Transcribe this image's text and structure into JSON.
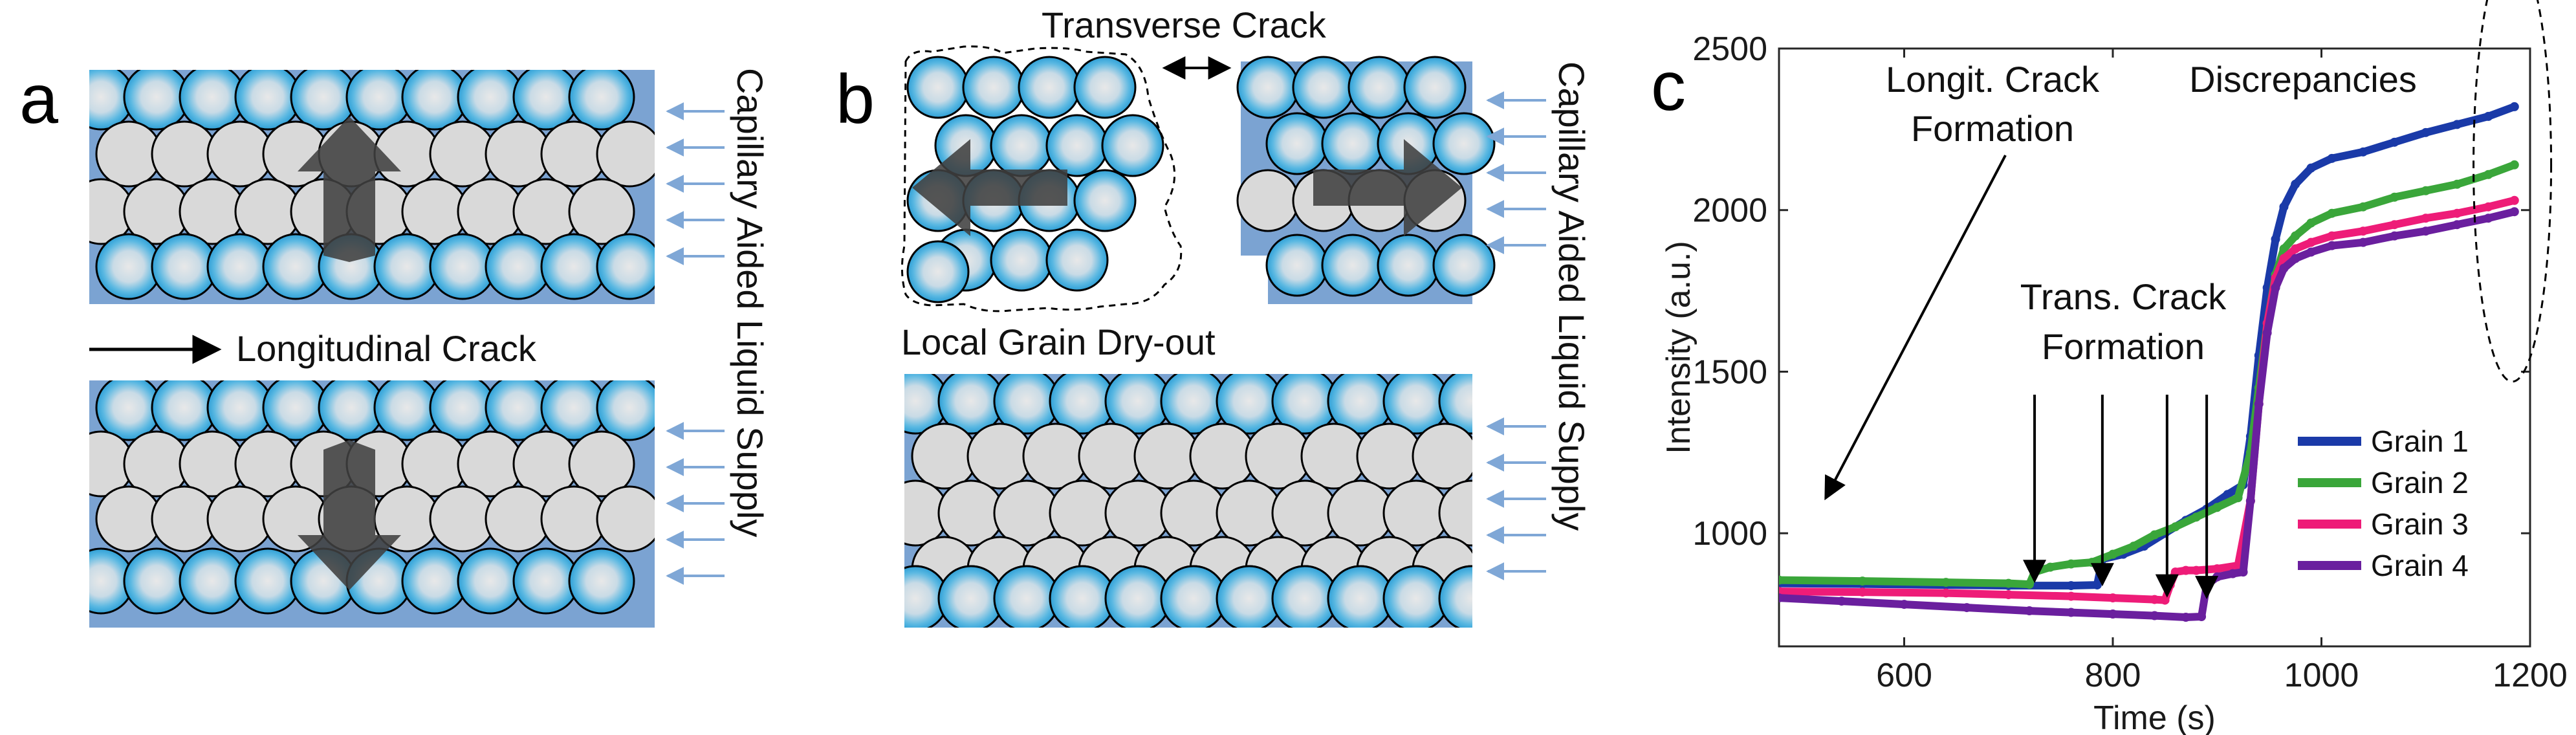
{
  "panels": {
    "a": {
      "letter": "a",
      "longitudinal_label": "Longitudinal Crack",
      "supply_label": "Capillary Aided Liquid Supply"
    },
    "b": {
      "letter": "b",
      "transverse_label": "Transverse Crack",
      "dryout_label": "Local Grain Dry-out",
      "supply_label": "Capillary Aided Liquid Supply"
    },
    "c": {
      "letter": "c"
    }
  },
  "colors": {
    "grain_blue": "#5ab8e2",
    "grain_gray": "#d9d9d9",
    "band_blue": "#7ba3d2",
    "supply_arrow": "#7fa7d6",
    "move_arrow": "#404040"
  },
  "chart_data": {
    "type": "line",
    "xlabel": "Time (s)",
    "ylabel": "Intensity (a.u.)",
    "xlim": [
      480,
      1200
    ],
    "ylim": [
      650,
      2500
    ],
    "x_ticks": [
      "600",
      "800",
      "1000",
      "1200"
    ],
    "y_ticks": [
      "1000",
      "1500",
      "2000",
      "2500"
    ],
    "legend_position": "lower-right",
    "annotations": {
      "longit": [
        "Longit. Crack",
        "Formation"
      ],
      "trans": [
        "Trans. Crack",
        "Formation"
      ],
      "discrepancies": "Discrepancies"
    },
    "series": [
      {
        "name": "Grain 1",
        "color": "#1a3aa8",
        "points": [
          [
            480,
            845
          ],
          [
            560,
            843
          ],
          [
            640,
            840
          ],
          [
            700,
            838
          ],
          [
            760,
            838
          ],
          [
            785,
            840
          ],
          [
            790,
            920
          ],
          [
            810,
            935
          ],
          [
            830,
            960
          ],
          [
            850,
            1000
          ],
          [
            870,
            1040
          ],
          [
            890,
            1075
          ],
          [
            910,
            1120
          ],
          [
            925,
            1150
          ],
          [
            932,
            1300
          ],
          [
            940,
            1550
          ],
          [
            948,
            1760
          ],
          [
            956,
            1910
          ],
          [
            964,
            2010
          ],
          [
            975,
            2080
          ],
          [
            990,
            2130
          ],
          [
            1010,
            2160
          ],
          [
            1040,
            2180
          ],
          [
            1070,
            2210
          ],
          [
            1100,
            2240
          ],
          [
            1130,
            2265
          ],
          [
            1160,
            2290
          ],
          [
            1185,
            2320
          ]
        ]
      },
      {
        "name": "Grain 2",
        "color": "#3aa63a",
        "points": [
          [
            480,
            855
          ],
          [
            560,
            852
          ],
          [
            640,
            848
          ],
          [
            700,
            845
          ],
          [
            720,
            842
          ],
          [
            725,
            880
          ],
          [
            740,
            895
          ],
          [
            760,
            905
          ],
          [
            780,
            910
          ],
          [
            800,
            935
          ],
          [
            820,
            960
          ],
          [
            840,
            995
          ],
          [
            860,
            1020
          ],
          [
            880,
            1050
          ],
          [
            900,
            1080
          ],
          [
            920,
            1110
          ],
          [
            932,
            1250
          ],
          [
            940,
            1450
          ],
          [
            948,
            1650
          ],
          [
            956,
            1800
          ],
          [
            964,
            1880
          ],
          [
            975,
            1920
          ],
          [
            990,
            1960
          ],
          [
            1010,
            1990
          ],
          [
            1040,
            2010
          ],
          [
            1070,
            2040
          ],
          [
            1100,
            2060
          ],
          [
            1130,
            2080
          ],
          [
            1160,
            2110
          ],
          [
            1185,
            2140
          ]
        ]
      },
      {
        "name": "Grain 3",
        "color": "#ee1c78",
        "points": [
          [
            480,
            820
          ],
          [
            560,
            818
          ],
          [
            640,
            815
          ],
          [
            700,
            810
          ],
          [
            760,
            805
          ],
          [
            800,
            800
          ],
          [
            840,
            795
          ],
          [
            850,
            793
          ],
          [
            855,
            840
          ],
          [
            860,
            880
          ],
          [
            870,
            885
          ],
          [
            880,
            885
          ],
          [
            900,
            890
          ],
          [
            920,
            900
          ],
          [
            932,
            1100
          ],
          [
            940,
            1400
          ],
          [
            948,
            1650
          ],
          [
            956,
            1790
          ],
          [
            964,
            1850
          ],
          [
            975,
            1880
          ],
          [
            990,
            1900
          ],
          [
            1010,
            1920
          ],
          [
            1040,
            1935
          ],
          [
            1070,
            1955
          ],
          [
            1100,
            1975
          ],
          [
            1130,
            1990
          ],
          [
            1160,
            2010
          ],
          [
            1185,
            2030
          ]
        ]
      },
      {
        "name": "Grain 4",
        "color": "#6a1f9e",
        "points": [
          [
            480,
            800
          ],
          [
            540,
            790
          ],
          [
            600,
            780
          ],
          [
            660,
            770
          ],
          [
            720,
            760
          ],
          [
            760,
            755
          ],
          [
            800,
            750
          ],
          [
            840,
            745
          ],
          [
            870,
            740
          ],
          [
            885,
            742
          ],
          [
            890,
            840
          ],
          [
            900,
            865
          ],
          [
            915,
            875
          ],
          [
            925,
            880
          ],
          [
            932,
            1100
          ],
          [
            940,
            1400
          ],
          [
            948,
            1620
          ],
          [
            956,
            1760
          ],
          [
            964,
            1820
          ],
          [
            975,
            1850
          ],
          [
            990,
            1870
          ],
          [
            1010,
            1890
          ],
          [
            1040,
            1900
          ],
          [
            1070,
            1920
          ],
          [
            1100,
            1935
          ],
          [
            1130,
            1955
          ],
          [
            1160,
            1975
          ],
          [
            1185,
            1995
          ]
        ]
      }
    ]
  }
}
